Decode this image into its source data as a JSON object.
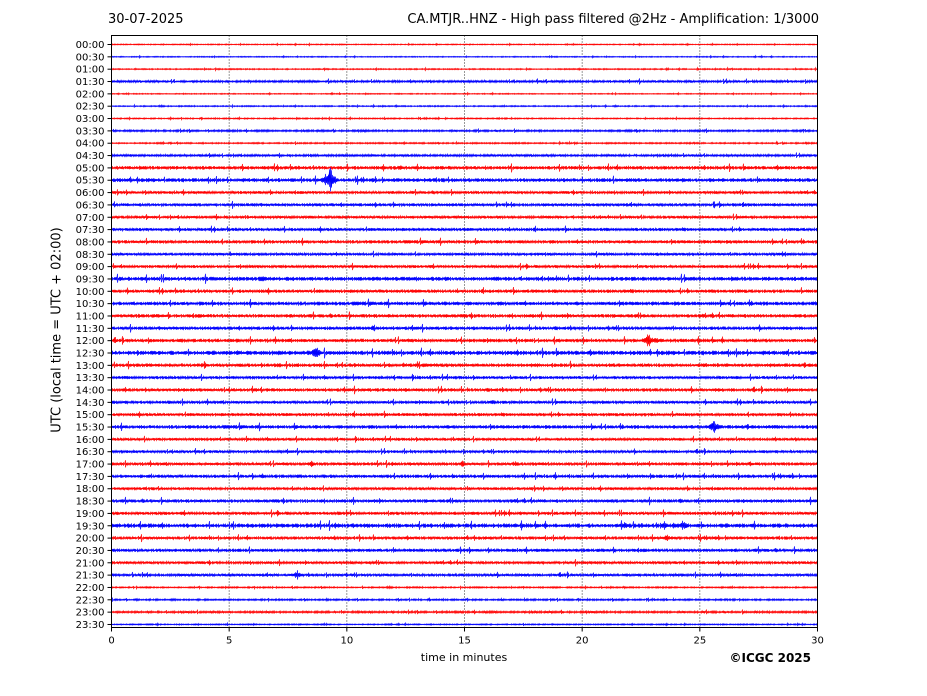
{
  "header": {
    "date": "30-07-2025",
    "title": "CA.MTJR..HNZ - High pass filtered @2Hz - Amplification: 1/3000"
  },
  "footer": {
    "copyright": "©ICGC 2025"
  },
  "colors": {
    "odd_trace": "#ff0000",
    "even_trace": "#0000ff",
    "grid": "#000000"
  },
  "chart_data": {
    "type": "line",
    "title": "CA.MTJR..HNZ - High pass filtered @2Hz - Amplification: 1/3000",
    "xlabel": "time in minutes",
    "ylabel": "UTC (local time = UTC + 02:00)",
    "xlim": [
      0,
      30
    ],
    "x_ticks": [
      "0",
      "5",
      "10",
      "15",
      "20",
      "25",
      "30"
    ],
    "y_ticks": [
      "00:00",
      "00:30",
      "01:00",
      "01:30",
      "02:00",
      "02:30",
      "03:00",
      "03:30",
      "04:00",
      "04:30",
      "05:00",
      "05:30",
      "06:00",
      "06:30",
      "07:00",
      "07:30",
      "08:00",
      "08:30",
      "09:00",
      "09:30",
      "10:00",
      "10:30",
      "11:00",
      "11:30",
      "12:00",
      "12:30",
      "13:00",
      "13:30",
      "14:00",
      "14:30",
      "15:00",
      "15:30",
      "16:00",
      "16:30",
      "17:00",
      "17:30",
      "18:00",
      "18:30",
      "19:00",
      "19:30",
      "20:00",
      "20:30",
      "21:00",
      "21:30",
      "22:00",
      "22:30",
      "23:00",
      "23:30"
    ],
    "grid": "vertical dotted lines at each 5 minutes",
    "trace_colors": [
      "#ff0000",
      "#0000ff"
    ],
    "noise_level": [
      0.4,
      0.4,
      0.5,
      1,
      0.4,
      0.5,
      0.5,
      0.8,
      0.6,
      1,
      1.5,
      1.6,
      1.2,
      1.3,
      1.2,
      1.3,
      1.4,
      1.2,
      1.2,
      1.7,
      1.4,
      1.6,
      1.5,
      1.4,
      1.5,
      1.8,
      1.5,
      1.3,
      1.4,
      1.3,
      1.3,
      1.5,
      1.2,
      1.2,
      1.3,
      1.4,
      1.2,
      1.4,
      1.3,
      1.8,
      1.3,
      1.4,
      1.2,
      1.2,
      0.6,
      0.7,
      0.9,
      0.5
    ],
    "events": [
      {
        "trace": "05:30",
        "minute": 9.3,
        "amplitude": 14
      },
      {
        "trace": "05:30",
        "minute": 9.1,
        "amplitude": 7
      },
      {
        "trace": "12:00",
        "minute": 22.8,
        "amplitude": 9
      },
      {
        "trace": "12:00",
        "minute": 23.1,
        "amplitude": 5
      },
      {
        "trace": "12:30",
        "minute": 8.7,
        "amplitude": 8
      },
      {
        "trace": "12:30",
        "minute": 5.4,
        "amplitude": 4
      },
      {
        "trace": "15:30",
        "minute": 25.6,
        "amplitude": 9
      },
      {
        "trace": "17:00",
        "minute": 8.5,
        "amplitude": 4
      },
      {
        "trace": "17:00",
        "minute": 14.9,
        "amplitude": 4
      },
      {
        "trace": "19:30",
        "minute": 21.8,
        "amplitude": 4
      },
      {
        "trace": "19:30",
        "minute": 23.5,
        "amplitude": 5
      },
      {
        "trace": "19:30",
        "minute": 24.3,
        "amplitude": 6
      },
      {
        "trace": "21:30",
        "minute": 7.9,
        "amplitude": 5
      },
      {
        "trace": "18:30",
        "minute": 24.2,
        "amplitude": 3
      },
      {
        "trace": "05:00",
        "minute": 12.3,
        "amplitude": 3
      },
      {
        "trace": "14:30",
        "minute": 16.2,
        "amplitude": 3
      },
      {
        "trace": "10:30",
        "minute": 29.9,
        "amplitude": 3
      },
      {
        "trace": "20:00",
        "minute": 23.6,
        "amplitude": 4
      },
      {
        "trace": "09:30",
        "minute": 6.5,
        "amplitude": 4
      },
      {
        "trace": "11:30",
        "minute": 11.1,
        "amplitude": 3
      }
    ]
  }
}
